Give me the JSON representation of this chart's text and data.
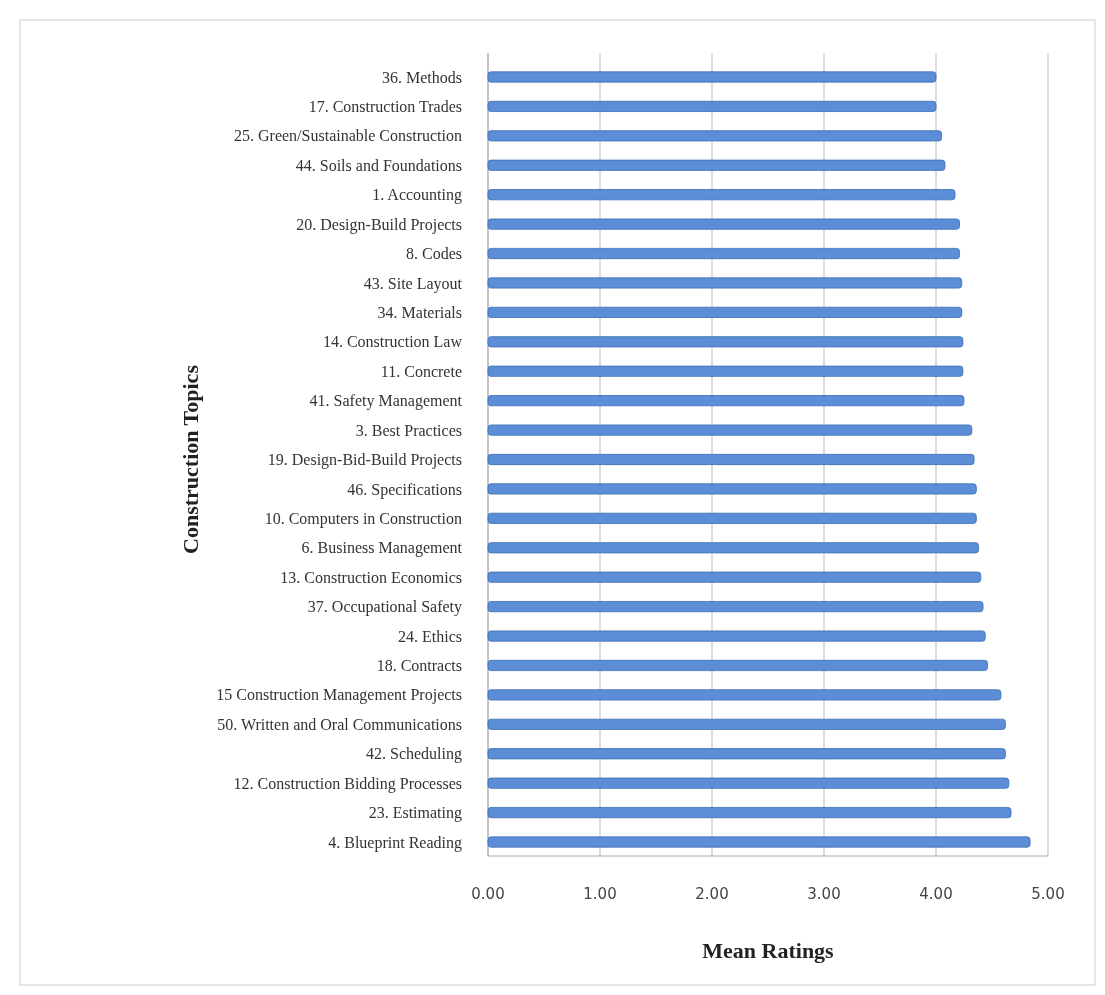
{
  "chart_data": {
    "type": "bar",
    "orientation": "horizontal",
    "xlabel": "Mean Ratings",
    "ylabel": "Construction Topics",
    "categories": [
      "36. Methods",
      "17. Construction Trades",
      "25. Green/Sustainable Construction",
      "44. Soils and Foundations",
      "1. Accounting",
      "20. Design-Build Projects",
      "8. Codes",
      "43. Site Layout",
      "34. Materials",
      "14. Construction Law",
      "11. Concrete",
      "41. Safety Management",
      "3. Best Practices",
      "19. Design-Bid-Build Projects",
      "46. Specifications",
      "10. Computers in Construction",
      "6. Business Management",
      "13. Construction Economics",
      "37. Occupational Safety",
      "24. Ethics",
      "18. Contracts",
      "15 Construction Management Projects",
      "50. Written and Oral Communications",
      "42. Scheduling",
      "12. Construction Bidding Processes",
      "23. Estimating",
      "4. Blueprint Reading"
    ],
    "values": [
      4.0,
      4.0,
      4.05,
      4.08,
      4.17,
      4.21,
      4.21,
      4.23,
      4.23,
      4.24,
      4.24,
      4.25,
      4.32,
      4.34,
      4.36,
      4.36,
      4.38,
      4.4,
      4.42,
      4.44,
      4.46,
      4.58,
      4.62,
      4.62,
      4.65,
      4.67,
      4.84
    ],
    "color": "#5b8ed6",
    "xlim": [
      0,
      5
    ],
    "xticks": [
      {
        "value": 0,
        "label": "0.00"
      },
      {
        "value": 1,
        "label": "1.00"
      },
      {
        "value": 2,
        "label": "2.00"
      },
      {
        "value": 3,
        "label": "3.00"
      },
      {
        "value": 4,
        "label": "4.00"
      },
      {
        "value": 5,
        "label": "5.00"
      }
    ],
    "grid": "x"
  }
}
